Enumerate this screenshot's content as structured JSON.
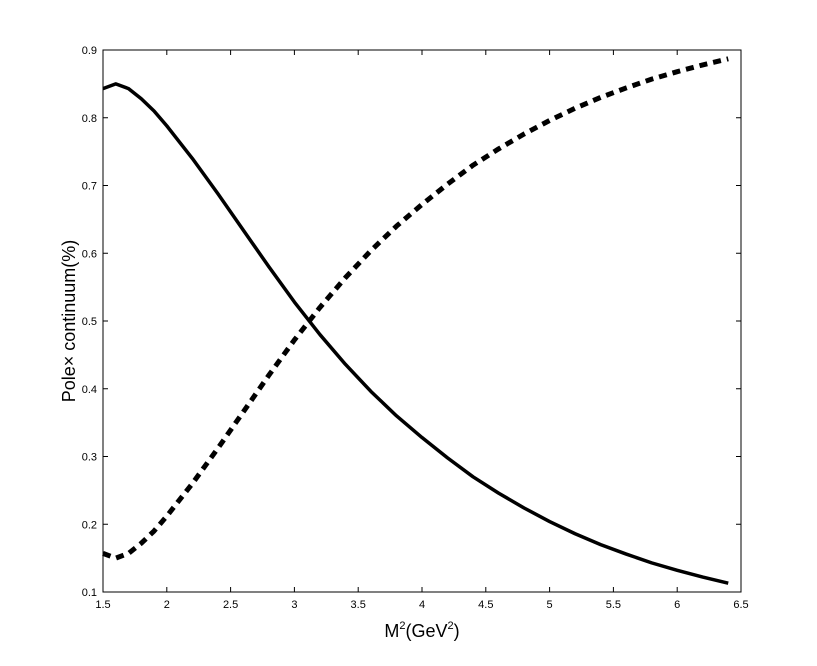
{
  "chart_data": {
    "type": "line",
    "title": "",
    "xlabel": {
      "base": "M",
      "sup1": "2",
      "mid": "(GeV",
      "sup2": "2",
      "end": ")"
    },
    "ylabel": "Pole× continuum(%)",
    "xlim": [
      1.5,
      6.5
    ],
    "ylim": [
      0.1,
      0.9
    ],
    "xticks": [
      1.5,
      2,
      2.5,
      3,
      3.5,
      4,
      4.5,
      5,
      5.5,
      6,
      6.5
    ],
    "xtick_labels": [
      "1.5",
      "2",
      "2.5",
      "3",
      "3.5",
      "4",
      "4.5",
      "5",
      "5.5",
      "6",
      "6.5"
    ],
    "yticks": [
      0.1,
      0.2,
      0.3,
      0.4,
      0.5,
      0.6,
      0.7,
      0.8,
      0.9
    ],
    "ytick_labels": [
      "0.1",
      "0.2",
      "0.3",
      "0.4",
      "0.5",
      "0.6",
      "0.7",
      "0.8",
      "0.9"
    ],
    "grid": false,
    "legend": "none",
    "x": [
      1.5,
      1.6,
      1.7,
      1.8,
      1.9,
      2.0,
      2.2,
      2.4,
      2.6,
      2.8,
      3.0,
      3.2,
      3.4,
      3.6,
      3.8,
      4.0,
      4.2,
      4.4,
      4.6,
      4.8,
      5.0,
      5.2,
      5.4,
      5.6,
      5.8,
      6.0,
      6.2,
      6.4
    ],
    "series": [
      {
        "style": "solid",
        "color": "#000000",
        "values": [
          0.843,
          0.85,
          0.843,
          0.828,
          0.81,
          0.788,
          0.74,
          0.688,
          0.634,
          0.58,
          0.528,
          0.48,
          0.436,
          0.396,
          0.36,
          0.328,
          0.298,
          0.27,
          0.246,
          0.224,
          0.204,
          0.186,
          0.17,
          0.156,
          0.143,
          0.132,
          0.122,
          0.113
        ]
      },
      {
        "style": "dashed",
        "color": "#000000",
        "values": [
          0.157,
          0.15,
          0.157,
          0.172,
          0.19,
          0.212,
          0.26,
          0.312,
          0.366,
          0.42,
          0.472,
          0.52,
          0.564,
          0.604,
          0.64,
          0.672,
          0.702,
          0.73,
          0.754,
          0.776,
          0.796,
          0.814,
          0.83,
          0.844,
          0.857,
          0.868,
          0.878,
          0.887
        ]
      }
    ]
  }
}
